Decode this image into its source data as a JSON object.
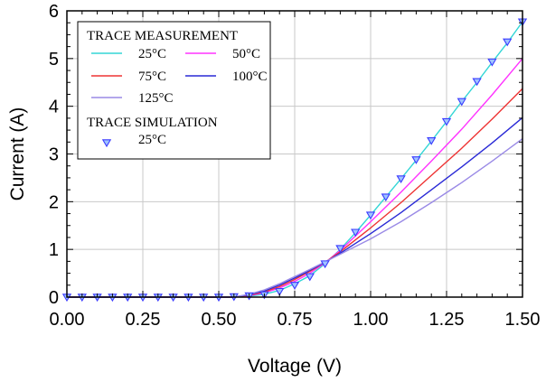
{
  "chart_data": {
    "type": "line",
    "xlabel": "Voltage (V)",
    "ylabel": "Current (A)",
    "xlim": [
      0,
      1.5
    ],
    "ylim": [
      0,
      6
    ],
    "x_ticks": [
      "0.00",
      "0.25",
      "0.50",
      "0.75",
      "1.00",
      "1.25",
      "1.50"
    ],
    "y_ticks": [
      "0",
      "1",
      "2",
      "3",
      "4",
      "5",
      "6"
    ],
    "grid": true,
    "legend_placement": "top-left",
    "legend_groups": [
      "TRACE MEASUREMENT",
      "TRACE SIMULATION"
    ],
    "series": [
      {
        "name": "25°C",
        "group": "TRACE MEASUREMENT",
        "color": "#33d6d6",
        "x": [
          0.55,
          0.6,
          0.65,
          0.7,
          0.75,
          0.8,
          0.85,
          0.9,
          0.95,
          1.0,
          1.05,
          1.1,
          1.15,
          1.2,
          1.25,
          1.3,
          1.35,
          1.4,
          1.45,
          1.5
        ],
        "y": [
          0.0,
          0.02,
          0.06,
          0.14,
          0.28,
          0.45,
          0.7,
          1.0,
          1.35,
          1.72,
          2.1,
          2.48,
          2.87,
          3.27,
          3.68,
          4.1,
          4.5,
          4.92,
          5.33,
          5.77
        ]
      },
      {
        "name": "50°C",
        "group": "TRACE MEASUREMENT",
        "color": "#ff33ff",
        "x": [
          0.55,
          0.6,
          0.65,
          0.7,
          0.75,
          0.8,
          0.85,
          0.9,
          1.0,
          1.1,
          1.2,
          1.3,
          1.4,
          1.5
        ],
        "y": [
          0.0,
          0.03,
          0.09,
          0.19,
          0.33,
          0.5,
          0.72,
          0.98,
          1.58,
          2.2,
          2.85,
          3.52,
          4.24,
          5.0
        ]
      },
      {
        "name": "75°C",
        "group": "TRACE MEASUREMENT",
        "color": "#ee3333",
        "x": [
          0.55,
          0.6,
          0.65,
          0.7,
          0.75,
          0.8,
          0.85,
          0.9,
          1.0,
          1.1,
          1.2,
          1.3,
          1.4,
          1.5
        ],
        "y": [
          0.0,
          0.04,
          0.11,
          0.22,
          0.37,
          0.54,
          0.73,
          0.95,
          1.45,
          1.98,
          2.55,
          3.12,
          3.73,
          4.37
        ]
      },
      {
        "name": "100°C",
        "group": "TRACE MEASUREMENT",
        "color": "#2a2ad6",
        "x": [
          0.55,
          0.6,
          0.65,
          0.7,
          0.75,
          0.8,
          0.85,
          0.9,
          1.0,
          1.1,
          1.2,
          1.3,
          1.4,
          1.5
        ],
        "y": [
          0.0,
          0.05,
          0.13,
          0.25,
          0.4,
          0.56,
          0.73,
          0.92,
          1.33,
          1.77,
          2.25,
          2.73,
          3.23,
          3.76
        ]
      },
      {
        "name": "125°C",
        "group": "TRACE MEASUREMENT",
        "color": "#9a8ae6",
        "x": [
          0.55,
          0.6,
          0.65,
          0.7,
          0.75,
          0.8,
          0.85,
          0.9,
          1.0,
          1.1,
          1.2,
          1.3,
          1.4,
          1.5
        ],
        "y": [
          0.0,
          0.06,
          0.15,
          0.28,
          0.43,
          0.58,
          0.74,
          0.9,
          1.22,
          1.58,
          1.98,
          2.4,
          2.85,
          3.32
        ]
      },
      {
        "name": "25°C",
        "group": "TRACE SIMULATION",
        "color": "#3a3aff",
        "marker": "triangle-down",
        "x": [
          0.0,
          0.05,
          0.1,
          0.15,
          0.2,
          0.25,
          0.3,
          0.35,
          0.4,
          0.45,
          0.5,
          0.55,
          0.6,
          0.65,
          0.7,
          0.75,
          0.8,
          0.85,
          0.9,
          0.95,
          1.0,
          1.05,
          1.1,
          1.15,
          1.2,
          1.25,
          1.3,
          1.35,
          1.4,
          1.45,
          1.5
        ],
        "y": [
          0,
          0,
          0,
          0,
          0,
          0,
          0,
          0,
          0,
          0,
          0,
          0.01,
          0.03,
          0.05,
          0.12,
          0.25,
          0.43,
          0.7,
          1.02,
          1.36,
          1.72,
          2.1,
          2.48,
          2.88,
          3.28,
          3.68,
          4.1,
          4.52,
          4.93,
          5.35,
          5.77
        ]
      }
    ]
  }
}
